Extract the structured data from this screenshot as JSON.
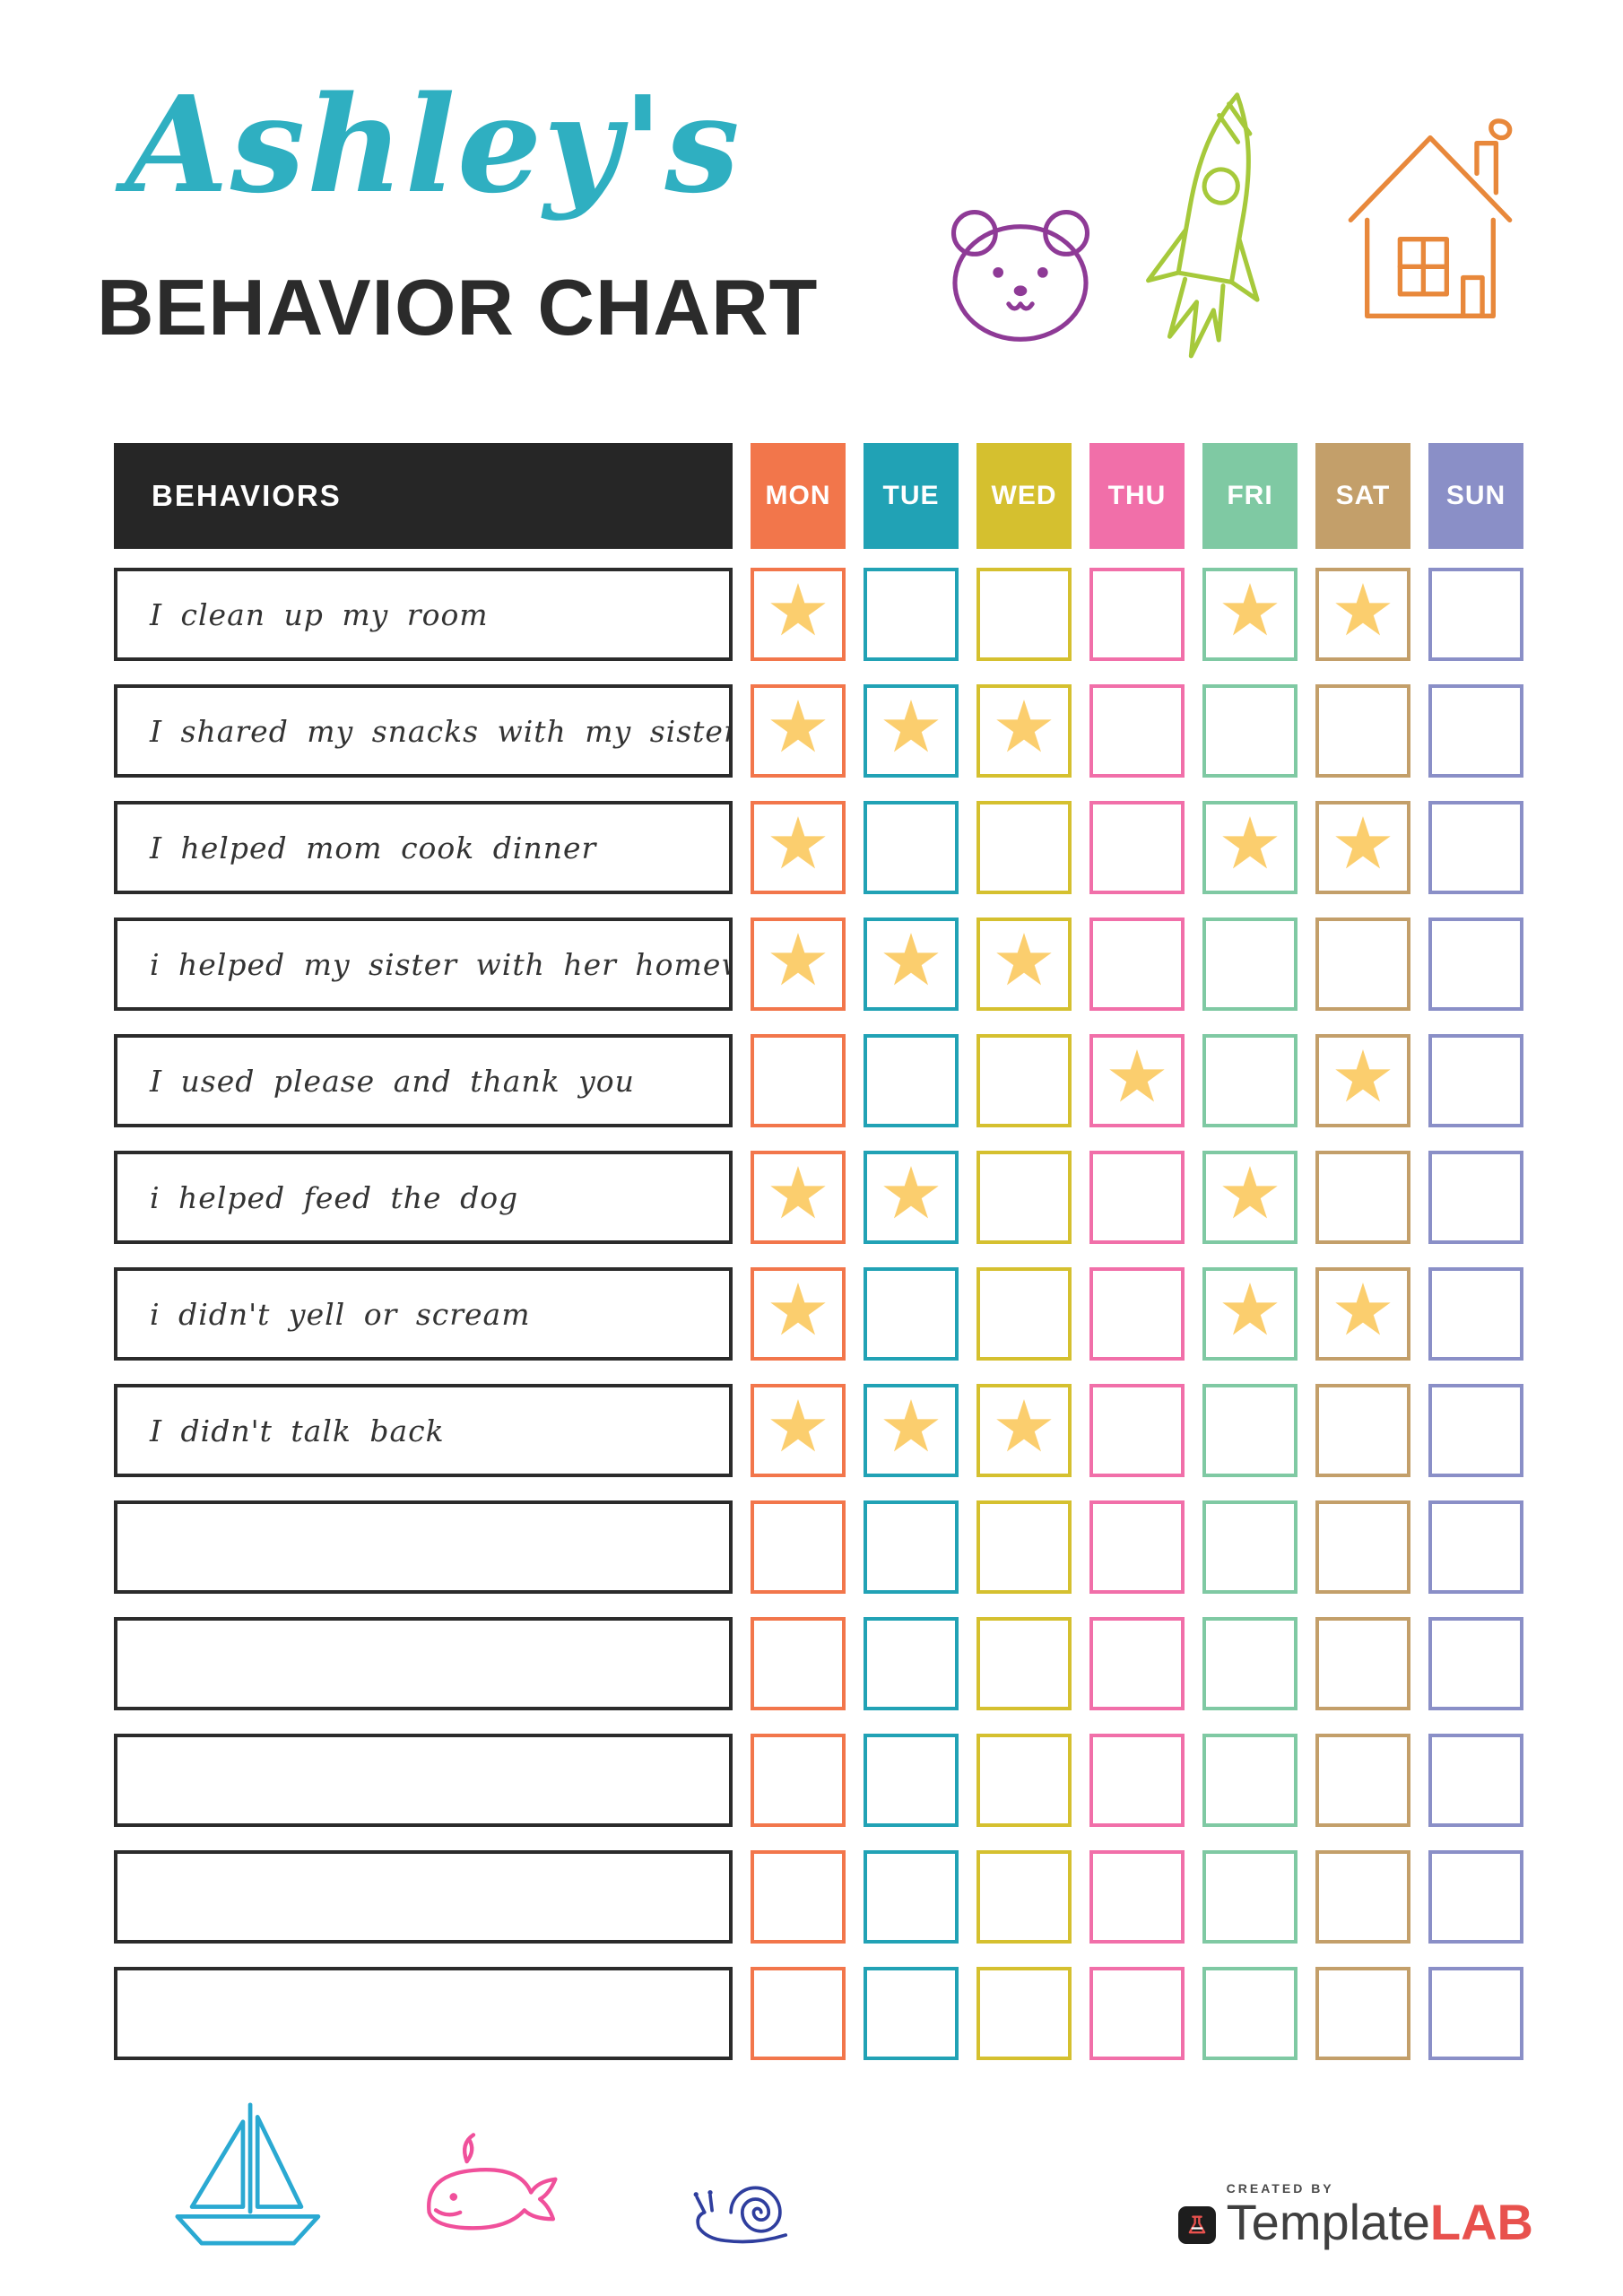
{
  "page": {
    "owner_name": "Ashley's",
    "title": "BEHAVIOR CHART"
  },
  "table": {
    "behaviors_header": "BEHAVIORS",
    "star_glyph": "★",
    "star_color": "#fbce6e",
    "days": [
      {
        "label": "MON",
        "color": "#f2764b"
      },
      {
        "label": "TUE",
        "color": "#21a2b5"
      },
      {
        "label": "WED",
        "color": "#d5c02f"
      },
      {
        "label": "THU",
        "color": "#f16fa9"
      },
      {
        "label": "FRI",
        "color": "#7fc9a3"
      },
      {
        "label": "SAT",
        "color": "#c39f6a"
      },
      {
        "label": "SUN",
        "color": "#8a8fc7"
      }
    ],
    "rows": [
      {
        "behavior": "I clean up my room",
        "stars": [
          true,
          false,
          false,
          false,
          true,
          true,
          false
        ]
      },
      {
        "behavior": "I shared my snacks with my sister",
        "stars": [
          true,
          true,
          true,
          false,
          false,
          false,
          false
        ]
      },
      {
        "behavior": "I helped mom cook dinner",
        "stars": [
          true,
          false,
          false,
          false,
          true,
          true,
          false
        ]
      },
      {
        "behavior": "i helped my sister with her homework",
        "stars": [
          true,
          true,
          true,
          false,
          false,
          false,
          false
        ]
      },
      {
        "behavior": "I used please and thank you",
        "stars": [
          false,
          false,
          false,
          true,
          false,
          true,
          false
        ]
      },
      {
        "behavior": "i helped feed the dog",
        "stars": [
          true,
          true,
          false,
          false,
          true,
          false,
          false
        ]
      },
      {
        "behavior": "i didn't yell or scream",
        "stars": [
          true,
          false,
          false,
          false,
          true,
          true,
          false
        ]
      },
      {
        "behavior": "I didn't talk back",
        "stars": [
          true,
          true,
          true,
          false,
          false,
          false,
          false
        ]
      },
      {
        "behavior": "",
        "stars": [
          false,
          false,
          false,
          false,
          false,
          false,
          false
        ]
      },
      {
        "behavior": "",
        "stars": [
          false,
          false,
          false,
          false,
          false,
          false,
          false
        ]
      },
      {
        "behavior": "",
        "stars": [
          false,
          false,
          false,
          false,
          false,
          false,
          false
        ]
      },
      {
        "behavior": "",
        "stars": [
          false,
          false,
          false,
          false,
          false,
          false,
          false
        ]
      },
      {
        "behavior": "",
        "stars": [
          false,
          false,
          false,
          false,
          false,
          false,
          false
        ]
      }
    ]
  },
  "decorations": {
    "title_color": "#2fafc1",
    "bear_color": "#8e3a96",
    "rocket_color": "#a6c93b",
    "house_color": "#e8883b",
    "sailboat_color": "#2aa9d2",
    "whale_color": "#f0509b",
    "snail_color": "#2f3e9e"
  },
  "footer": {
    "created_by": "CREATED BY",
    "brand_first": "Template",
    "brand_second": "LAB"
  }
}
